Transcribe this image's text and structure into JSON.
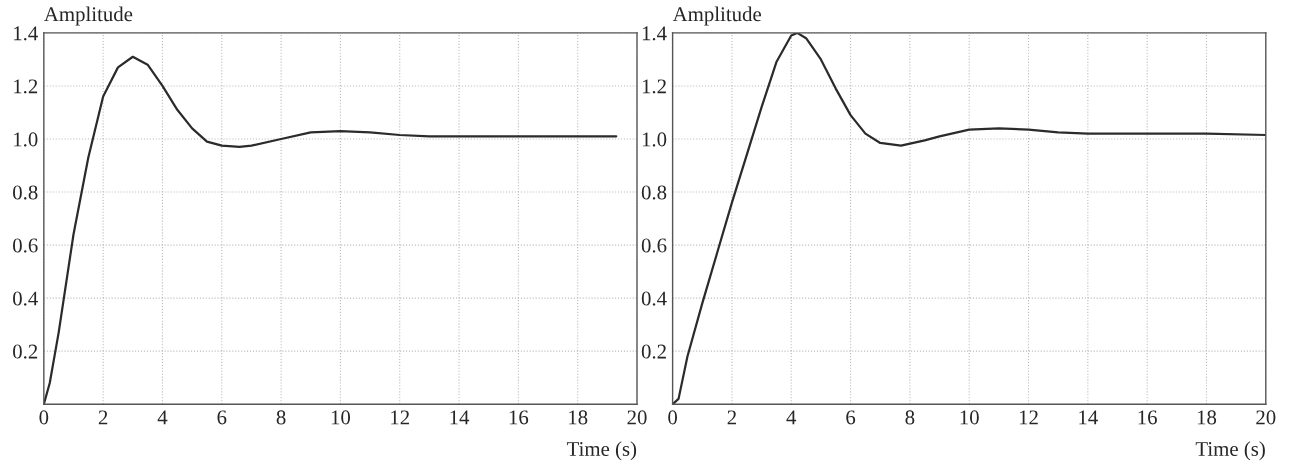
{
  "chart_data": [
    {
      "type": "line",
      "ylabel": "Amplitude",
      "xlabel": "Time (s)",
      "xlim": [
        0,
        20
      ],
      "ylim": [
        0,
        1.4
      ],
      "xticks": [
        0,
        2,
        4,
        6,
        8,
        10,
        12,
        14,
        16,
        18,
        20
      ],
      "yticks": [
        0.2,
        0.4,
        0.6,
        0.8,
        {
          "value": 1,
          "label": "1.0"
        },
        1.2,
        1.4
      ],
      "grid": true,
      "line_style": "solid",
      "series": [
        {
          "color": "#2b2b2b",
          "x": [
            0,
            0.2,
            0.5,
            1,
            1.5,
            2,
            2.5,
            3,
            3.5,
            4,
            4.5,
            5,
            5.5,
            6,
            6.6,
            7,
            8,
            9,
            10,
            11,
            12,
            13,
            19.3
          ],
          "values": [
            0,
            0.08,
            0.27,
            0.64,
            0.93,
            1.16,
            1.27,
            1.31,
            1.28,
            1.2,
            1.11,
            1.04,
            0.99,
            0.975,
            0.97,
            0.975,
            1.0,
            1.025,
            1.03,
            1.025,
            1.015,
            1.01,
            1.01
          ]
        }
      ]
    },
    {
      "type": "line",
      "ylabel": "Amplitude",
      "xlabel": "Time (s)",
      "xlim": [
        0,
        20
      ],
      "ylim": [
        0,
        1.4
      ],
      "xticks": [
        0,
        2,
        4,
        6,
        8,
        10,
        12,
        14,
        16,
        18,
        20
      ],
      "yticks": [
        0.2,
        0.4,
        0.6,
        0.8,
        {
          "value": 1,
          "label": "1.0"
        },
        1.2,
        1.4
      ],
      "grid": true,
      "line_style": "solid",
      "series": [
        {
          "color": "#2b2b2b",
          "x": [
            0,
            0.2,
            0.5,
            1,
            1.5,
            2,
            2.5,
            3,
            3.5,
            4,
            4.2,
            4.5,
            5,
            5.5,
            6,
            6.5,
            7,
            7.7,
            8.5,
            9,
            10,
            11,
            12,
            13,
            14,
            18,
            20
          ],
          "values": [
            0,
            0.02,
            0.18,
            0.38,
            0.57,
            0.76,
            0.94,
            1.12,
            1.29,
            1.39,
            1.4,
            1.38,
            1.3,
            1.19,
            1.09,
            1.02,
            0.985,
            0.975,
            0.995,
            1.01,
            1.035,
            1.04,
            1.035,
            1.025,
            1.02,
            1.02,
            1.015
          ]
        }
      ]
    }
  ]
}
